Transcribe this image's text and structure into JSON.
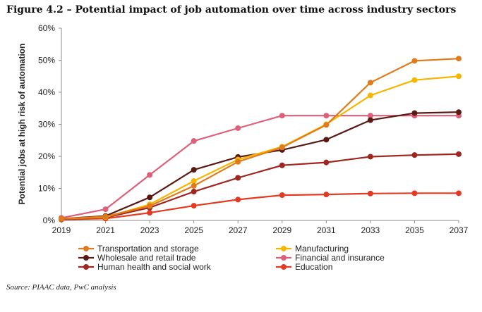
{
  "figure": {
    "title": "Figure 4.2 – Potential impact of job automation over time across industry sectors",
    "source": "Source: PIAAC data, PwC analysis"
  },
  "chart_data": {
    "type": "line",
    "x": [
      2019,
      2021,
      2023,
      2025,
      2027,
      2029,
      2031,
      2033,
      2035,
      2037
    ],
    "xticks": [
      "2019",
      "2021",
      "2023",
      "2025",
      "2027",
      "2029",
      "2031",
      "2033",
      "2035",
      "2037"
    ],
    "ylabel": "Potential jobs at high risk of automation",
    "xlabel": "",
    "ylim": [
      0,
      60
    ],
    "yticks": [
      "0%",
      "10%",
      "20%",
      "30%",
      "40%",
      "50%",
      "60%"
    ],
    "grid": false,
    "legend_position": "bottom",
    "series": [
      {
        "name": "Transportation and storage",
        "color": "#E07B1B",
        "values": [
          0.5,
          1.2,
          4.5,
          10.8,
          18.3,
          22.8,
          29.8,
          43.0,
          49.8,
          50.5
        ]
      },
      {
        "name": "Manufacturing",
        "color": "#F7B500",
        "values": [
          0.5,
          1.0,
          5.0,
          12.3,
          19.0,
          23.0,
          30.0,
          39.0,
          43.8,
          45.0
        ]
      },
      {
        "name": "Wholesale and retail trade",
        "color": "#5A1A14",
        "values": [
          0.5,
          1.4,
          7.2,
          15.8,
          19.8,
          22.0,
          25.2,
          31.3,
          33.5,
          33.8
        ]
      },
      {
        "name": "Financial and insurance",
        "color": "#DE5F7A",
        "values": [
          0.8,
          3.5,
          14.2,
          24.8,
          28.8,
          32.7,
          32.7,
          32.7,
          32.7,
          32.7
        ]
      },
      {
        "name": "Human health and social work",
        "color": "#A0251F",
        "values": [
          0.4,
          0.9,
          4.0,
          9.0,
          13.3,
          17.2,
          18.1,
          19.9,
          20.4,
          20.7
        ]
      },
      {
        "name": "Education",
        "color": "#E53A22",
        "values": [
          0.3,
          0.6,
          2.4,
          4.6,
          6.5,
          7.9,
          8.1,
          8.4,
          8.5,
          8.5
        ]
      }
    ]
  }
}
